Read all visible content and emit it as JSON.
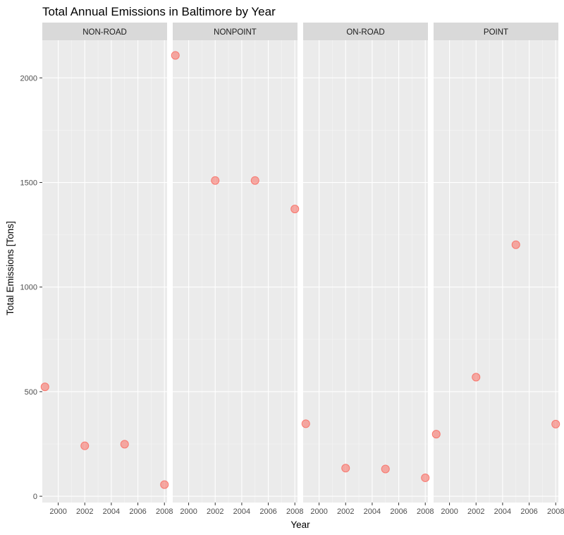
{
  "chart_data": {
    "type": "scatter",
    "title": "Total Annual Emissions in Baltimore by Year",
    "xlabel": "Year",
    "ylabel": "Total Emissions [Tons]",
    "xlim": [
      1998.8,
      2008.2
    ],
    "ylim": [
      -30,
      2180
    ],
    "x_ticks": [
      2000,
      2002,
      2004,
      2006,
      2008
    ],
    "y_ticks": [
      0,
      500,
      1000,
      1500,
      2000
    ],
    "grid": true,
    "point_color": "#F8766D",
    "panel_background": "#EBEBEB",
    "strip_background": "#D9D9D9",
    "facets": [
      {
        "label": "NON-ROAD",
        "points": [
          {
            "x": 1999,
            "y": 522.9
          },
          {
            "x": 2002,
            "y": 241.0
          },
          {
            "x": 2005,
            "y": 248.9
          },
          {
            "x": 2008,
            "y": 55.8
          }
        ]
      },
      {
        "label": "NONPOINT",
        "points": [
          {
            "x": 1999,
            "y": 2107.6
          },
          {
            "x": 2002,
            "y": 1509.5
          },
          {
            "x": 2005,
            "y": 1509.5
          },
          {
            "x": 2008,
            "y": 1373.2
          }
        ]
      },
      {
        "label": "ON-ROAD",
        "points": [
          {
            "x": 1999,
            "y": 346.8
          },
          {
            "x": 2002,
            "y": 134.3
          },
          {
            "x": 2005,
            "y": 130.4
          },
          {
            "x": 2008,
            "y": 88.3
          }
        ]
      },
      {
        "label": "POINT",
        "points": [
          {
            "x": 1999,
            "y": 296.8
          },
          {
            "x": 2002,
            "y": 569.3
          },
          {
            "x": 2005,
            "y": 1202.5
          },
          {
            "x": 2008,
            "y": 344.9
          }
        ]
      }
    ]
  }
}
